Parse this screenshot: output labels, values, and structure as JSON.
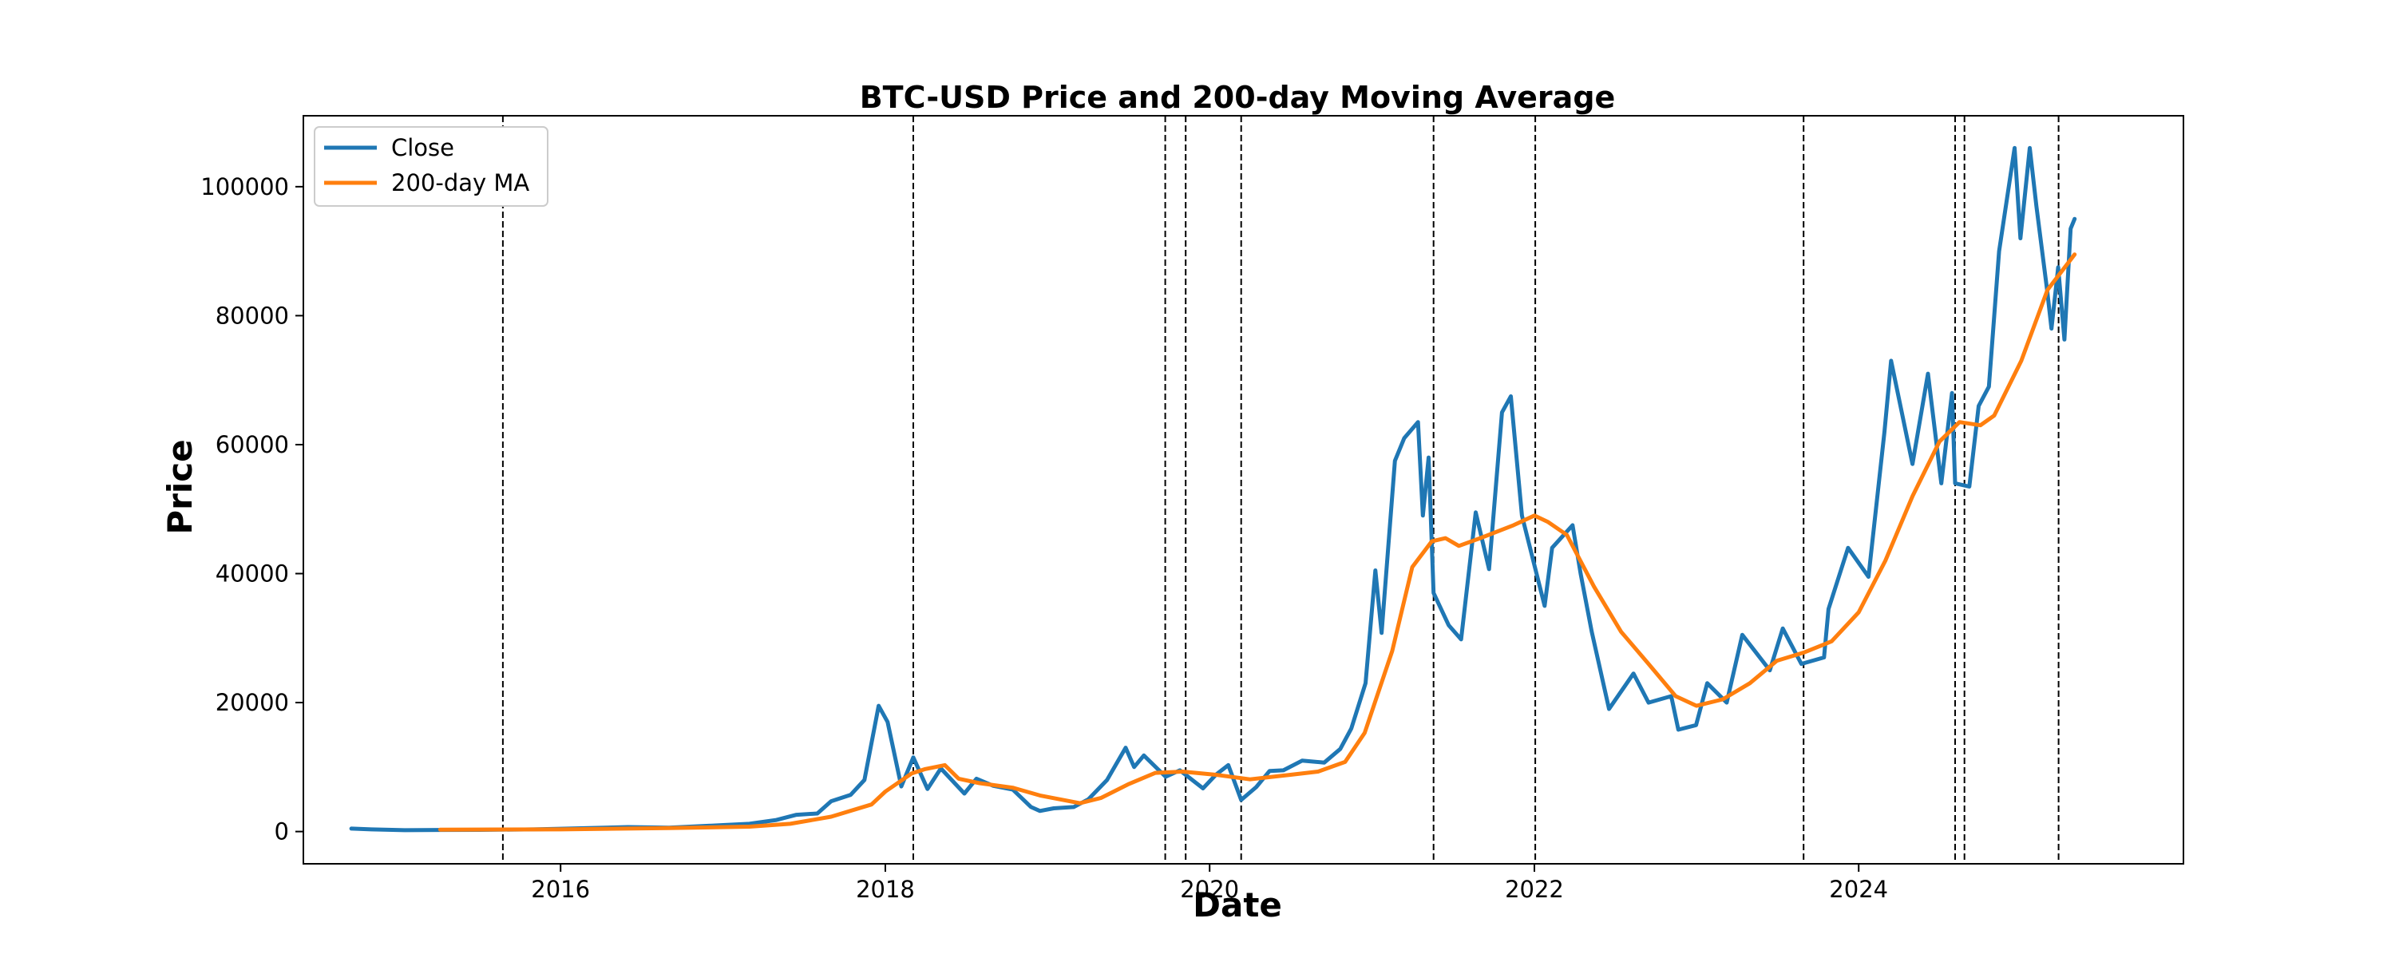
{
  "chart_data": {
    "type": "line",
    "title": "BTC-USD Price and 200-day Moving Average",
    "xlabel": "Date",
    "ylabel": "Price",
    "x_range": [
      "2014-06-01",
      "2026-01-01"
    ],
    "ylim": [
      -5000,
      111000
    ],
    "x_ticks": [
      "2016",
      "2018",
      "2020",
      "2022",
      "2024"
    ],
    "y_ticks": [
      "0",
      "20000",
      "40000",
      "60000",
      "80000",
      "100000"
    ],
    "grid": false,
    "legend_position": "upper left",
    "series": [
      {
        "name": "Close",
        "color": "#1f77b4",
        "points": [
          [
            "2014-09-17",
            457
          ],
          [
            "2014-11-01",
            330
          ],
          [
            "2015-01-15",
            210
          ],
          [
            "2015-04-01",
            250
          ],
          [
            "2015-07-01",
            265
          ],
          [
            "2015-11-01",
            330
          ],
          [
            "2016-01-01",
            430
          ],
          [
            "2016-06-01",
            700
          ],
          [
            "2016-09-01",
            600
          ],
          [
            "2017-01-01",
            1000
          ],
          [
            "2017-03-01",
            1200
          ],
          [
            "2017-05-01",
            1800
          ],
          [
            "2017-06-15",
            2600
          ],
          [
            "2017-08-01",
            2800
          ],
          [
            "2017-09-01",
            4700
          ],
          [
            "2017-10-15",
            5700
          ],
          [
            "2017-11-15",
            8000
          ],
          [
            "2017-12-17",
            19500
          ],
          [
            "2018-01-06",
            17000
          ],
          [
            "2018-02-06",
            7000
          ],
          [
            "2018-03-05",
            11500
          ],
          [
            "2018-04-06",
            6600
          ],
          [
            "2018-05-06",
            9800
          ],
          [
            "2018-06-28",
            5900
          ],
          [
            "2018-07-25",
            8200
          ],
          [
            "2018-09-01",
            7100
          ],
          [
            "2018-10-15",
            6500
          ],
          [
            "2018-11-25",
            3800
          ],
          [
            "2018-12-15",
            3200
          ],
          [
            "2019-01-15",
            3600
          ],
          [
            "2019-03-01",
            3800
          ],
          [
            "2019-04-03",
            5000
          ],
          [
            "2019-05-15",
            8000
          ],
          [
            "2019-06-26",
            13000
          ],
          [
            "2019-07-15",
            10000
          ],
          [
            "2019-08-06",
            11800
          ],
          [
            "2019-09-24",
            8500
          ],
          [
            "2019-10-26",
            9500
          ],
          [
            "2019-12-17",
            6700
          ],
          [
            "2020-01-15",
            8800
          ],
          [
            "2020-02-12",
            10300
          ],
          [
            "2020-03-12",
            4900
          ],
          [
            "2020-04-15",
            6900
          ],
          [
            "2020-05-15",
            9400
          ],
          [
            "2020-06-15",
            9500
          ],
          [
            "2020-07-27",
            11000
          ],
          [
            "2020-09-15",
            10700
          ],
          [
            "2020-10-21",
            12800
          ],
          [
            "2020-11-15",
            16000
          ],
          [
            "2020-12-17",
            23000
          ],
          [
            "2021-01-08",
            40500
          ],
          [
            "2021-01-22",
            30800
          ],
          [
            "2021-02-21",
            57500
          ],
          [
            "2021-03-14",
            61000
          ],
          [
            "2021-04-14",
            63500
          ],
          [
            "2021-04-25",
            49000
          ],
          [
            "2021-05-08",
            58000
          ],
          [
            "2021-05-19",
            37000
          ],
          [
            "2021-06-22",
            32000
          ],
          [
            "2021-07-20",
            29800
          ],
          [
            "2021-08-22",
            49500
          ],
          [
            "2021-09-21",
            40700
          ],
          [
            "2021-10-20",
            65000
          ],
          [
            "2021-11-09",
            67500
          ],
          [
            "2021-12-04",
            49000
          ],
          [
            "2022-01-24",
            35000
          ],
          [
            "2022-02-10",
            44000
          ],
          [
            "2022-03-28",
            47500
          ],
          [
            "2022-04-15",
            40000
          ],
          [
            "2022-05-10",
            31000
          ],
          [
            "2022-06-18",
            19000
          ],
          [
            "2022-08-12",
            24500
          ],
          [
            "2022-09-15",
            20000
          ],
          [
            "2022-11-05",
            21000
          ],
          [
            "2022-11-21",
            15800
          ],
          [
            "2022-12-31",
            16500
          ],
          [
            "2023-01-25",
            23000
          ],
          [
            "2023-03-10",
            20000
          ],
          [
            "2023-04-14",
            30500
          ],
          [
            "2023-06-15",
            25000
          ],
          [
            "2023-07-14",
            31500
          ],
          [
            "2023-08-25",
            26000
          ],
          [
            "2023-10-15",
            27000
          ],
          [
            "2023-10-25",
            34500
          ],
          [
            "2023-12-08",
            44000
          ],
          [
            "2024-01-23",
            39500
          ],
          [
            "2024-02-28",
            62000
          ],
          [
            "2024-03-14",
            73000
          ],
          [
            "2024-05-01",
            57000
          ],
          [
            "2024-06-05",
            71000
          ],
          [
            "2024-07-05",
            54000
          ],
          [
            "2024-07-29",
            68000
          ],
          [
            "2024-08-05",
            54000
          ],
          [
            "2024-09-06",
            53500
          ],
          [
            "2024-09-27",
            66000
          ],
          [
            "2024-10-20",
            69000
          ],
          [
            "2024-11-12",
            90000
          ],
          [
            "2024-12-17",
            106000
          ],
          [
            "2024-12-30",
            92000
          ],
          [
            "2025-01-20",
            106000
          ],
          [
            "2025-02-04",
            97000
          ],
          [
            "2025-02-28",
            84000
          ],
          [
            "2025-03-10",
            78000
          ],
          [
            "2025-03-25",
            87500
          ],
          [
            "2025-04-08",
            76300
          ],
          [
            "2025-04-22",
            93500
          ],
          [
            "2025-05-01",
            95000
          ]
        ]
      },
      {
        "name": "200-day MA",
        "color": "#ff7f0e",
        "points": [
          [
            "2015-04-05",
            300
          ],
          [
            "2016-01-01",
            340
          ],
          [
            "2016-09-01",
            550
          ],
          [
            "2017-03-01",
            760
          ],
          [
            "2017-06-01",
            1200
          ],
          [
            "2017-09-01",
            2300
          ],
          [
            "2017-12-01",
            4200
          ],
          [
            "2018-01-01",
            6200
          ],
          [
            "2018-03-01",
            9000
          ],
          [
            "2018-04-01",
            9700
          ],
          [
            "2018-05-15",
            10300
          ],
          [
            "2018-06-15",
            8200
          ],
          [
            "2018-08-01",
            7500
          ],
          [
            "2018-10-15",
            6800
          ],
          [
            "2018-12-15",
            5600
          ],
          [
            "2019-03-15",
            4400
          ],
          [
            "2019-05-01",
            5200
          ],
          [
            "2019-07-01",
            7300
          ],
          [
            "2019-09-01",
            9100
          ],
          [
            "2019-11-01",
            9300
          ],
          [
            "2020-01-15",
            8800
          ],
          [
            "2020-04-01",
            8100
          ],
          [
            "2020-07-01",
            8800
          ],
          [
            "2020-09-01",
            9300
          ],
          [
            "2020-11-01",
            10800
          ],
          [
            "2020-12-15",
            15300
          ],
          [
            "2021-02-15",
            28000
          ],
          [
            "2021-04-01",
            41000
          ],
          [
            "2021-05-15",
            45000
          ],
          [
            "2021-06-15",
            45500
          ],
          [
            "2021-07-15",
            44300
          ],
          [
            "2021-09-01",
            45500
          ],
          [
            "2021-11-15",
            47500
          ],
          [
            "2022-01-01",
            49000
          ],
          [
            "2022-02-01",
            48000
          ],
          [
            "2022-03-15",
            46000
          ],
          [
            "2022-05-15",
            38000
          ],
          [
            "2022-07-15",
            31000
          ],
          [
            "2022-09-15",
            26000
          ],
          [
            "2022-11-15",
            21000
          ],
          [
            "2023-01-01",
            19500
          ],
          [
            "2023-03-01",
            20500
          ],
          [
            "2023-05-01",
            23000
          ],
          [
            "2023-07-01",
            26500
          ],
          [
            "2023-09-01",
            27800
          ],
          [
            "2023-11-01",
            29500
          ],
          [
            "2024-01-01",
            34000
          ],
          [
            "2024-03-01",
            42000
          ],
          [
            "2024-05-01",
            52000
          ],
          [
            "2024-07-01",
            60500
          ],
          [
            "2024-08-15",
            63500
          ],
          [
            "2024-10-01",
            63000
          ],
          [
            "2024-11-01",
            64500
          ],
          [
            "2025-01-01",
            73000
          ],
          [
            "2025-03-01",
            84000
          ],
          [
            "2025-05-01",
            89500
          ]
        ]
      }
    ],
    "vertical_lines": [
      "2015-08-24",
      "2018-03-05",
      "2019-09-23",
      "2019-11-08",
      "2020-03-12",
      "2021-05-19",
      "2022-01-03",
      "2023-08-30",
      "2024-08-05",
      "2024-08-26",
      "2025-03-26"
    ]
  }
}
